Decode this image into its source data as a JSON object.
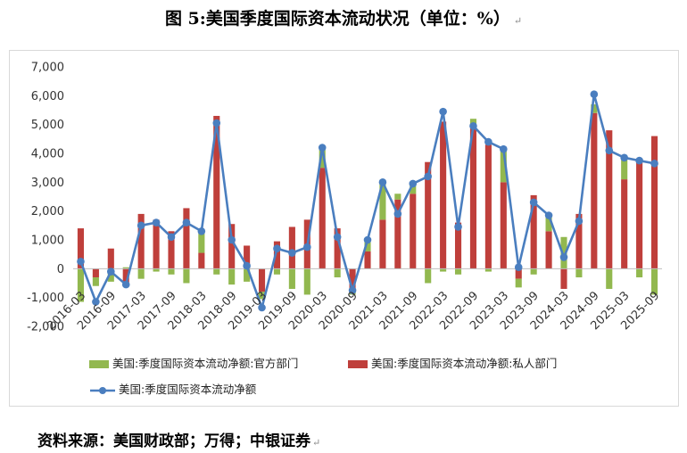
{
  "header": {
    "title": "图 5:美国季度国际资本流动状况（单位：%）",
    "title_mark": "↵"
  },
  "footer": {
    "source": "资料来源：美国财政部；万得；中银证券",
    "source_mark": "↵"
  },
  "colors": {
    "official": "#92b84f",
    "private": "#bf3f3b",
    "net": "#4a7ebf",
    "axis": "#bfbfbf"
  },
  "chart_data": {
    "type": "bar",
    "categories": [
      "2016-03",
      "2016-06",
      "2016-09",
      "2016-12",
      "2017-03",
      "2017-06",
      "2017-09",
      "2017-12",
      "2018-03",
      "2018-06",
      "2018-09",
      "2018-12",
      "2019-03",
      "2019-06",
      "2019-09",
      "2019-12",
      "2020-03",
      "2020-06",
      "2020-09",
      "2020-12",
      "2021-03",
      "2021-06",
      "2021-09",
      "2021-12",
      "2022-03",
      "2022-06",
      "2022-09",
      "2022-12",
      "2023-03",
      "2023-06",
      "2023-09",
      "2023-12",
      "2024-03",
      "2024-06",
      "2024-09",
      "2024-12",
      "2025-03",
      "2025-06",
      "2025-09"
    ],
    "x_tick_labels": [
      "2016-03",
      "2016-09",
      "2017-03",
      "2017-09",
      "2018-03",
      "2018-09",
      "2019-03",
      "2019-09",
      "2020-03",
      "2020-09",
      "2021-03",
      "2021-09",
      "2022-03",
      "2022-09",
      "2023-03",
      "2023-09",
      "2024-03",
      "2024-09",
      "2025-03",
      "2025-09"
    ],
    "y_ticks": [
      -2000,
      -1000,
      0,
      1000,
      2000,
      3000,
      4000,
      5000,
      6000,
      7000
    ],
    "y_tick_labels": [
      "-2,000",
      "-1,000",
      "0",
      "1,000",
      "2,000",
      "3,000",
      "4,000",
      "5,000",
      "6,000",
      "7,000"
    ],
    "ylim": [
      -2000,
      7000
    ],
    "series": [
      {
        "name": "美国:季度国际资本流动净额:官方部门",
        "type": "bar",
        "values": [
          -1150,
          -300,
          -450,
          50,
          -350,
          -100,
          -200,
          -500,
          700,
          -200,
          -550,
          -450,
          -250,
          -200,
          -700,
          -900,
          700,
          -300,
          -100,
          400,
          1300,
          200,
          300,
          -500,
          -100,
          -200,
          300,
          -100,
          1200,
          -300,
          -200,
          500,
          1100,
          -300,
          300,
          -700,
          700,
          -300,
          -900
        ]
      },
      {
        "name": "美国:季度国际资本流动净额:私人部门",
        "type": "bar",
        "values": [
          1400,
          -300,
          700,
          -600,
          1900,
          1700,
          1300,
          2100,
          550,
          5300,
          1550,
          800,
          -800,
          950,
          1450,
          1700,
          3500,
          1400,
          -800,
          600,
          1700,
          2400,
          2600,
          3700,
          5100,
          1600,
          4900,
          4300,
          3000,
          -350,
          2550,
          1300,
          -700,
          1900,
          5400,
          4800,
          3100,
          3750,
          4600
        ]
      },
      {
        "name": "美国:季度国际资本流动净额",
        "type": "line",
        "values": [
          250,
          -1150,
          -100,
          -550,
          1500,
          1600,
          1100,
          1600,
          1300,
          5050,
          1000,
          100,
          -1350,
          700,
          550,
          750,
          4200,
          1100,
          -750,
          1000,
          3000,
          1900,
          2950,
          3200,
          5450,
          1450,
          4950,
          4400,
          4150,
          50,
          2300,
          1850,
          400,
          1650,
          6050,
          4100,
          3850,
          3750,
          3650
        ]
      }
    ],
    "legend_position": "bottom",
    "grid": false
  }
}
